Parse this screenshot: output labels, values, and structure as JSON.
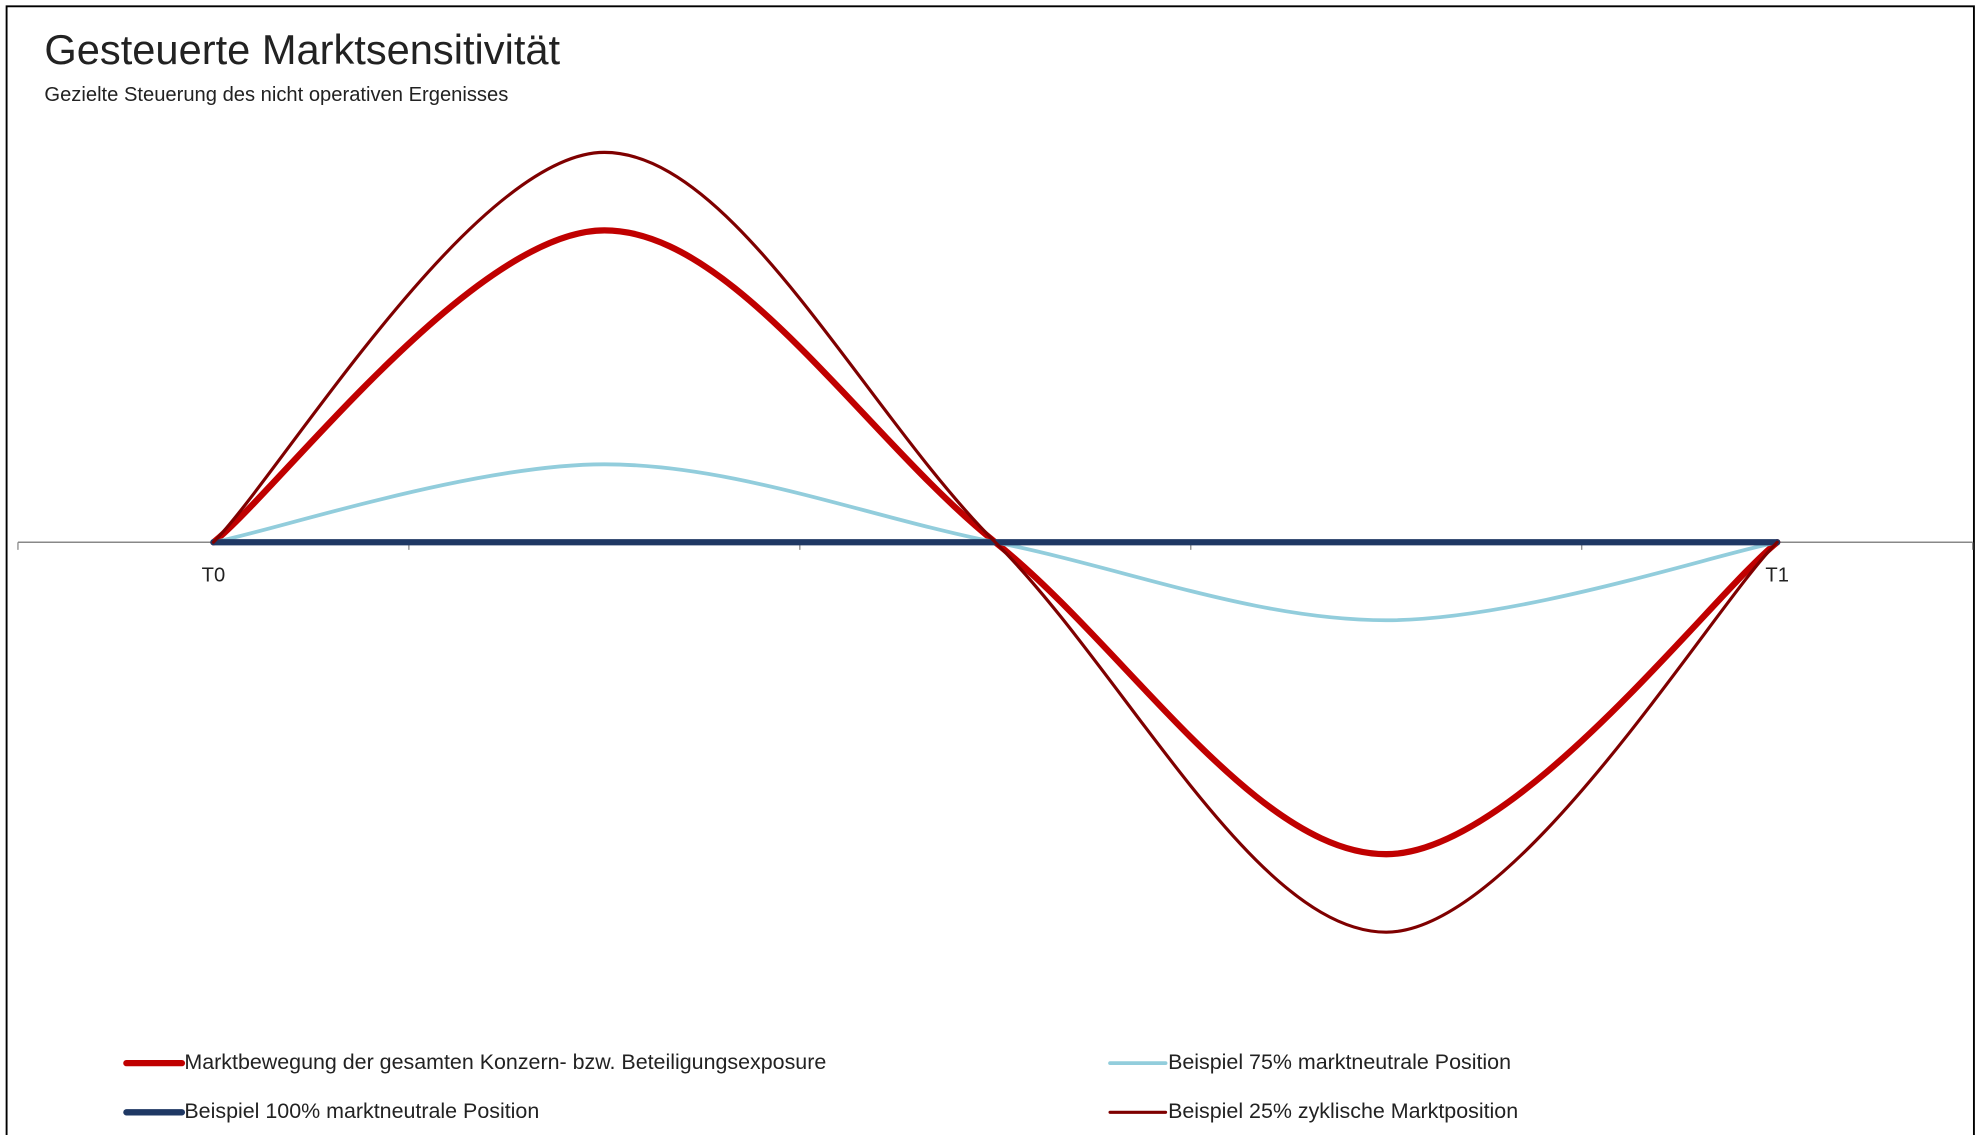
{
  "chart_data": {
    "type": "line",
    "smooth": true,
    "title": "Gesteuerte Marktsensitivität",
    "subtitle": "Gezielte Steuerung des nicht operativen Ergenisses",
    "categories": [
      "T0",
      null,
      null,
      null,
      "T1"
    ],
    "ylim": [
      -1.5,
      1.5
    ],
    "series": [
      {
        "name": "Marktbewegung der gesamten Konzern- bzw. Beteiligungsexposure",
        "color": "#c00000",
        "linewidth": 5,
        "values": [
          0,
          1,
          0,
          -1,
          0
        ]
      },
      {
        "name": "Beispiel 75% marktneutrale Position",
        "color": "#92cddc",
        "linewidth": 3,
        "values": [
          0,
          0.25,
          0,
          -0.25,
          0
        ]
      },
      {
        "name": "Beispiel 100% marktneutrale Position",
        "color": "#1f3864",
        "linewidth": 5,
        "values": [
          0,
          0,
          0,
          0,
          0
        ]
      },
      {
        "name": "Beispiel 25% zyklische Marktposition",
        "color": "#7f0000",
        "linewidth": 2.5,
        "values": [
          0,
          1.25,
          0,
          -1.25,
          0
        ]
      }
    ],
    "legend": "bottom"
  }
}
